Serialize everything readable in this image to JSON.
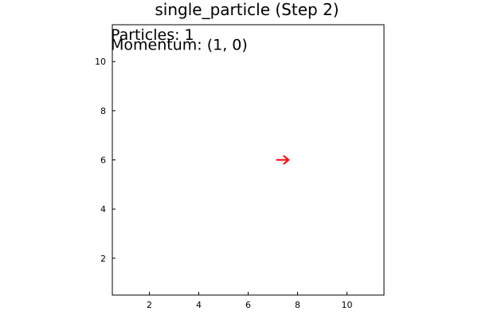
{
  "chart_data": {
    "type": "scatter",
    "title": "single_particle (Step 2)",
    "xlim": [
      0.5,
      11.5
    ],
    "ylim": [
      0.5,
      11.5
    ],
    "x_ticks": [
      2,
      4,
      6,
      8,
      10
    ],
    "y_ticks": [
      2,
      4,
      6,
      8,
      10
    ],
    "grid": false,
    "legend": false,
    "aspect": "equal",
    "annotations": [
      {
        "text": "Particles: 1",
        "x": 0.5,
        "y": 11.5
      },
      {
        "text": "Momentum: (1, 0)",
        "x": 0.5,
        "y": 11.1
      }
    ],
    "series": [
      {
        "marker": "arrow",
        "color": "#ff0000",
        "points": [
          {
            "x": 7.4,
            "y": 6,
            "dx": 1,
            "dy": 0
          }
        ]
      }
    ]
  }
}
